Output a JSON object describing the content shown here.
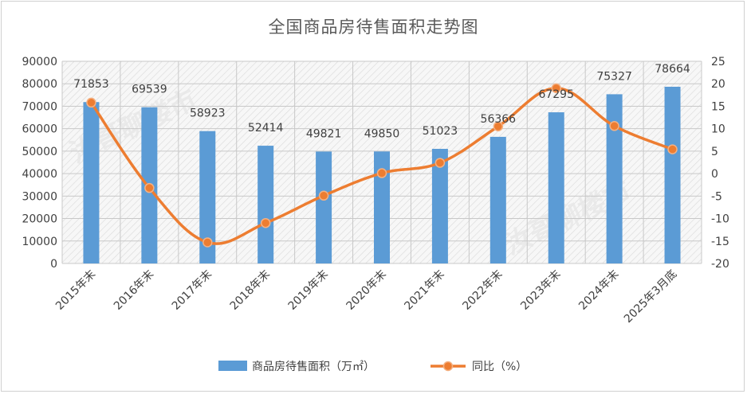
{
  "chart_data": {
    "type": "bar",
    "title": "全国商品房待售面积走势图",
    "categories": [
      "2015年末",
      "2016年末",
      "2017年末",
      "2018年末",
      "2019年末",
      "2020年末",
      "2021年末",
      "2022年末",
      "2023年末",
      "2024年末",
      "2025年3月底"
    ],
    "series": [
      {
        "name": "商品房待售面积（万㎡）",
        "type": "bar",
        "axis": "left",
        "color": "#5B9BD5",
        "values": [
          71853,
          69539,
          58923,
          52414,
          49821,
          49850,
          51023,
          56366,
          67295,
          75327,
          78664
        ]
      },
      {
        "name": "同比（%）",
        "type": "line",
        "axis": "right",
        "color": "#ED7D31",
        "values": [
          15.8,
          -3.2,
          -15.3,
          -11.0,
          -4.9,
          0.1,
          2.4,
          10.5,
          19.0,
          10.6,
          5.4
        ]
      }
    ],
    "y_left": {
      "ylim": [
        0,
        90000
      ],
      "ticks": [
        "0",
        "10000",
        "20000",
        "30000",
        "40000",
        "50000",
        "60000",
        "70000",
        "80000",
        "90000"
      ]
    },
    "y_right": {
      "ylim": [
        -20,
        25
      ],
      "ticks": [
        "-20",
        "-15",
        "-10",
        "-5",
        "0",
        "5",
        "10",
        "15",
        "20",
        "25"
      ]
    },
    "grid": true,
    "legend": "bottom",
    "watermark": [
      "汝哥聊楼市",
      "汝哥聊楼市"
    ]
  }
}
